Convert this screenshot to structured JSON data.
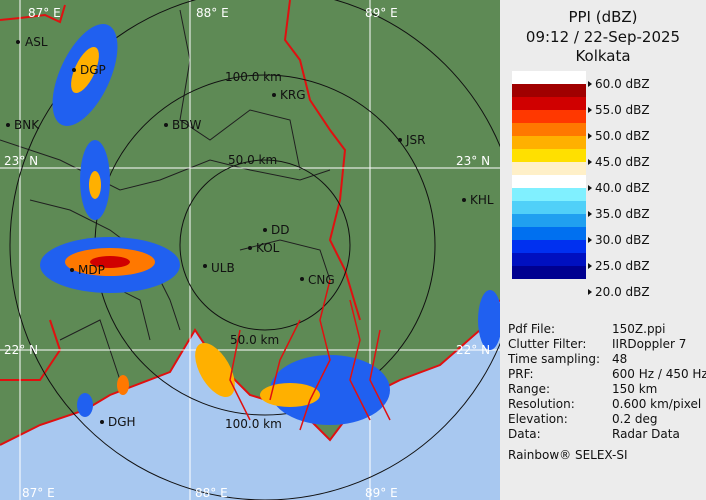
{
  "header": {
    "title": "PPI (dBZ)",
    "timestamp": "09:12 / 22-Sep-2025",
    "station": "Kolkata"
  },
  "legend": [
    {
      "label": "60.0 dBZ",
      "color": "#ffffff"
    },
    {
      "label": "55.0 dBZ",
      "color": "#b00000"
    },
    {
      "label": "50.0 dBZ",
      "color": "#ff4000"
    },
    {
      "label": "45.0 dBZ",
      "color": "#ffb000"
    },
    {
      "label": "40.0 dBZ",
      "color": "#fff0c8"
    },
    {
      "label": "35.0 dBZ",
      "color": "#80e8ff"
    },
    {
      "label": "30.0 dBZ",
      "color": "#20a0f0"
    },
    {
      "label": "25.0 dBZ",
      "color": "#0030f0"
    },
    {
      "label": "20.0 dBZ",
      "color": "#000090"
    }
  ],
  "legend_colors": [
    "#ffffff",
    "#a00000",
    "#d00000",
    "#ff3800",
    "#ff7800",
    "#ffb000",
    "#ffe000",
    "#fff0c8",
    "#ffffff",
    "#80f0ff",
    "#50d0f8",
    "#20a0f0",
    "#0070f0",
    "#0030f0",
    "#0010c0",
    "#000090"
  ],
  "info": [
    {
      "key": "Pdf File:",
      "value": "150Z.ppi"
    },
    {
      "key": "Clutter Filter:",
      "value": "IIRDoppler 7"
    },
    {
      "key": "Time sampling:",
      "value": "48"
    },
    {
      "key": "PRF:",
      "value": "600 Hz / 450 Hz"
    },
    {
      "key": "Range:",
      "value": "150 km"
    },
    {
      "key": "Resolution:",
      "value": "0.600 km/pixel"
    },
    {
      "key": "Elevation:",
      "value": "0.2 deg"
    },
    {
      "key": "Data:",
      "value": "Radar Data"
    }
  ],
  "footer": "Rainbow® SELEX-SI",
  "map": {
    "grid_labels": {
      "lon87": "87° E",
      "lon88": "88° E",
      "lon89": "89° E",
      "lat23": "23° N",
      "lat22": "22° N"
    },
    "range_labels": {
      "r100_top": "100.0 km",
      "r50_top": "50.0 km",
      "r50_bottom": "50.0 km",
      "r100_bottom": "100.0 km"
    },
    "cities": [
      "ASL",
      "DGP",
      "BNK",
      "BDW",
      "KRG",
      "JSR",
      "KHL",
      "MDP",
      "DD",
      "KOL",
      "ULB",
      "CNG",
      "DGH"
    ],
    "colors": {
      "land": "#5e8a55",
      "sea": "#a8c8f0",
      "border": "#e01010"
    }
  }
}
